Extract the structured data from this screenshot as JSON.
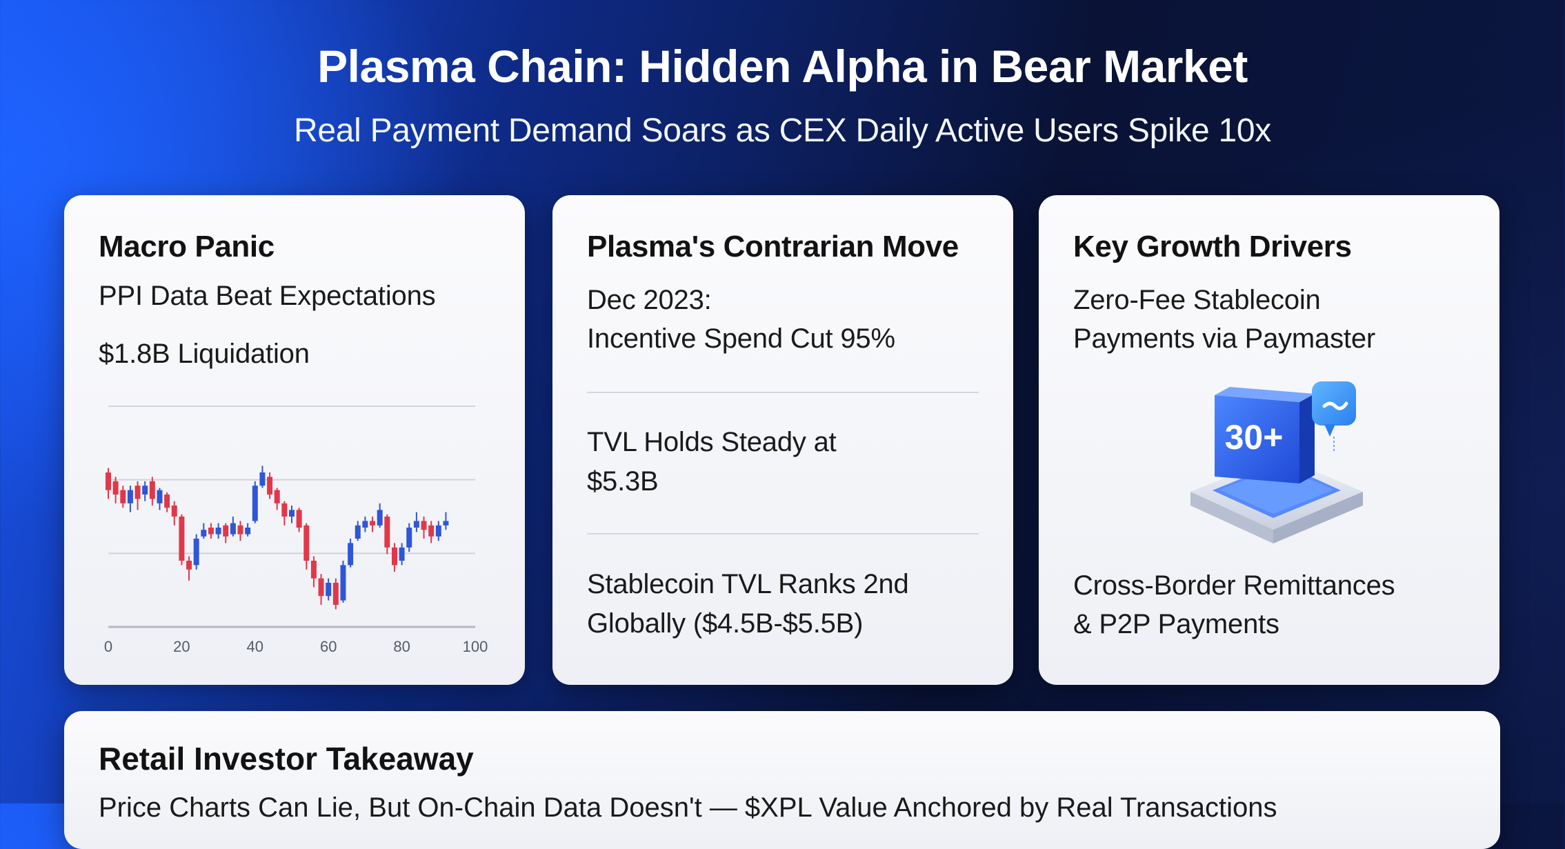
{
  "header": {
    "title": "Plasma Chain: Hidden Alpha in Bear Market",
    "subtitle": "Real Payment Demand Soars as CEX Daily Active Users Spike 10x"
  },
  "cards": [
    {
      "title": "Macro Panic",
      "lines": [
        "PPI Data Beat Expectations",
        "$1.8B Liquidation"
      ]
    },
    {
      "title": "Plasma's Contrarian Move",
      "sections": [
        [
          "Dec 2023:",
          "Incentive Spend Cut 95%"
        ],
        [
          "TVL Holds Steady at",
          "$5.3B"
        ],
        [
          "Stablecoin TVL Ranks 2nd",
          "Globally ($4.5B-$5.5B)"
        ]
      ]
    },
    {
      "title": "Key Growth Drivers",
      "lines": [
        "Zero-Fee Stablecoin",
        "Payments via Paymaster"
      ],
      "badge": "30+",
      "badge_icon": "chat-bubble-icon",
      "bottom_lines": [
        "Cross-Border Remittances",
        "& P2P Payments"
      ]
    }
  ],
  "bottom": {
    "title": "Retail Investor Takeaway",
    "line": "Price Charts Can Lie, But On-Chain Data Doesn't — $XPL Value Anchored by Real Transactions"
  },
  "colors": {
    "up": "#2f56d6",
    "down": "#e0384a",
    "accent_blue": "#2b6bff"
  },
  "chart_data": {
    "type": "candlestick",
    "x_ticks": [
      "0",
      "20",
      "40",
      "60",
      "80",
      "100"
    ],
    "xlim": [
      0,
      100
    ],
    "ylim": [
      0,
      100
    ],
    "grid": true,
    "candles": [
      {
        "x": 0,
        "o": 70,
        "c": 62,
        "h": 72,
        "l": 58
      },
      {
        "x": 2,
        "o": 66,
        "c": 60,
        "h": 68,
        "l": 56
      },
      {
        "x": 4,
        "o": 62,
        "c": 56,
        "h": 64,
        "l": 54
      },
      {
        "x": 6,
        "o": 56,
        "c": 62,
        "h": 64,
        "l": 52
      },
      {
        "x": 8,
        "o": 64,
        "c": 58,
        "h": 66,
        "l": 53
      },
      {
        "x": 10,
        "o": 60,
        "c": 64,
        "h": 66,
        "l": 57
      },
      {
        "x": 12,
        "o": 66,
        "c": 58,
        "h": 68,
        "l": 55
      },
      {
        "x": 14,
        "o": 56,
        "c": 62,
        "h": 63,
        "l": 53
      },
      {
        "x": 16,
        "o": 60,
        "c": 54,
        "h": 61,
        "l": 52
      },
      {
        "x": 18,
        "o": 55,
        "c": 50,
        "h": 57,
        "l": 46
      },
      {
        "x": 20,
        "o": 50,
        "c": 30,
        "h": 51,
        "l": 28
      },
      {
        "x": 22,
        "o": 30,
        "c": 26,
        "h": 32,
        "l": 21
      },
      {
        "x": 24,
        "o": 28,
        "c": 40,
        "h": 42,
        "l": 26
      },
      {
        "x": 26,
        "o": 41,
        "c": 44,
        "h": 47,
        "l": 40
      },
      {
        "x": 28,
        "o": 45,
        "c": 42,
        "h": 47,
        "l": 40
      },
      {
        "x": 30,
        "o": 42,
        "c": 45,
        "h": 47,
        "l": 40
      },
      {
        "x": 32,
        "o": 46,
        "c": 41,
        "h": 47,
        "l": 38
      },
      {
        "x": 34,
        "o": 42,
        "c": 47,
        "h": 50,
        "l": 41
      },
      {
        "x": 36,
        "o": 46,
        "c": 42,
        "h": 48,
        "l": 39
      },
      {
        "x": 38,
        "o": 42,
        "c": 45,
        "h": 47,
        "l": 41
      },
      {
        "x": 40,
        "o": 48,
        "c": 64,
        "h": 66,
        "l": 47
      },
      {
        "x": 42,
        "o": 64,
        "c": 70,
        "h": 73,
        "l": 63
      },
      {
        "x": 44,
        "o": 68,
        "c": 60,
        "h": 70,
        "l": 58
      },
      {
        "x": 46,
        "o": 62,
        "c": 56,
        "h": 63,
        "l": 53
      },
      {
        "x": 48,
        "o": 56,
        "c": 50,
        "h": 57,
        "l": 46
      },
      {
        "x": 50,
        "o": 50,
        "c": 53,
        "h": 55,
        "l": 47
      },
      {
        "x": 52,
        "o": 53,
        "c": 45,
        "h": 54,
        "l": 43
      },
      {
        "x": 54,
        "o": 46,
        "c": 30,
        "h": 47,
        "l": 26
      },
      {
        "x": 56,
        "o": 30,
        "c": 22,
        "h": 32,
        "l": 18
      },
      {
        "x": 58,
        "o": 22,
        "c": 14,
        "h": 24,
        "l": 10
      },
      {
        "x": 60,
        "o": 14,
        "c": 20,
        "h": 22,
        "l": 12
      },
      {
        "x": 62,
        "o": 20,
        "c": 10,
        "h": 22,
        "l": 8
      },
      {
        "x": 64,
        "o": 12,
        "c": 28,
        "h": 30,
        "l": 11
      },
      {
        "x": 66,
        "o": 28,
        "c": 38,
        "h": 40,
        "l": 27
      },
      {
        "x": 68,
        "o": 40,
        "c": 46,
        "h": 48,
        "l": 39
      },
      {
        "x": 70,
        "o": 45,
        "c": 48,
        "h": 50,
        "l": 43
      },
      {
        "x": 72,
        "o": 48,
        "c": 46,
        "h": 50,
        "l": 43
      },
      {
        "x": 74,
        "o": 46,
        "c": 53,
        "h": 56,
        "l": 45
      },
      {
        "x": 76,
        "o": 50,
        "c": 36,
        "h": 51,
        "l": 33
      },
      {
        "x": 78,
        "o": 36,
        "c": 28,
        "h": 38,
        "l": 25
      },
      {
        "x": 80,
        "o": 30,
        "c": 36,
        "h": 38,
        "l": 28
      },
      {
        "x": 82,
        "o": 36,
        "c": 45,
        "h": 47,
        "l": 34
      },
      {
        "x": 84,
        "o": 45,
        "c": 48,
        "h": 52,
        "l": 43
      },
      {
        "x": 86,
        "o": 48,
        "c": 44,
        "h": 50,
        "l": 40
      },
      {
        "x": 88,
        "o": 46,
        "c": 41,
        "h": 48,
        "l": 38
      },
      {
        "x": 90,
        "o": 41,
        "c": 46,
        "h": 48,
        "l": 39
      },
      {
        "x": 92,
        "o": 46,
        "c": 48,
        "h": 52,
        "l": 44
      }
    ]
  }
}
